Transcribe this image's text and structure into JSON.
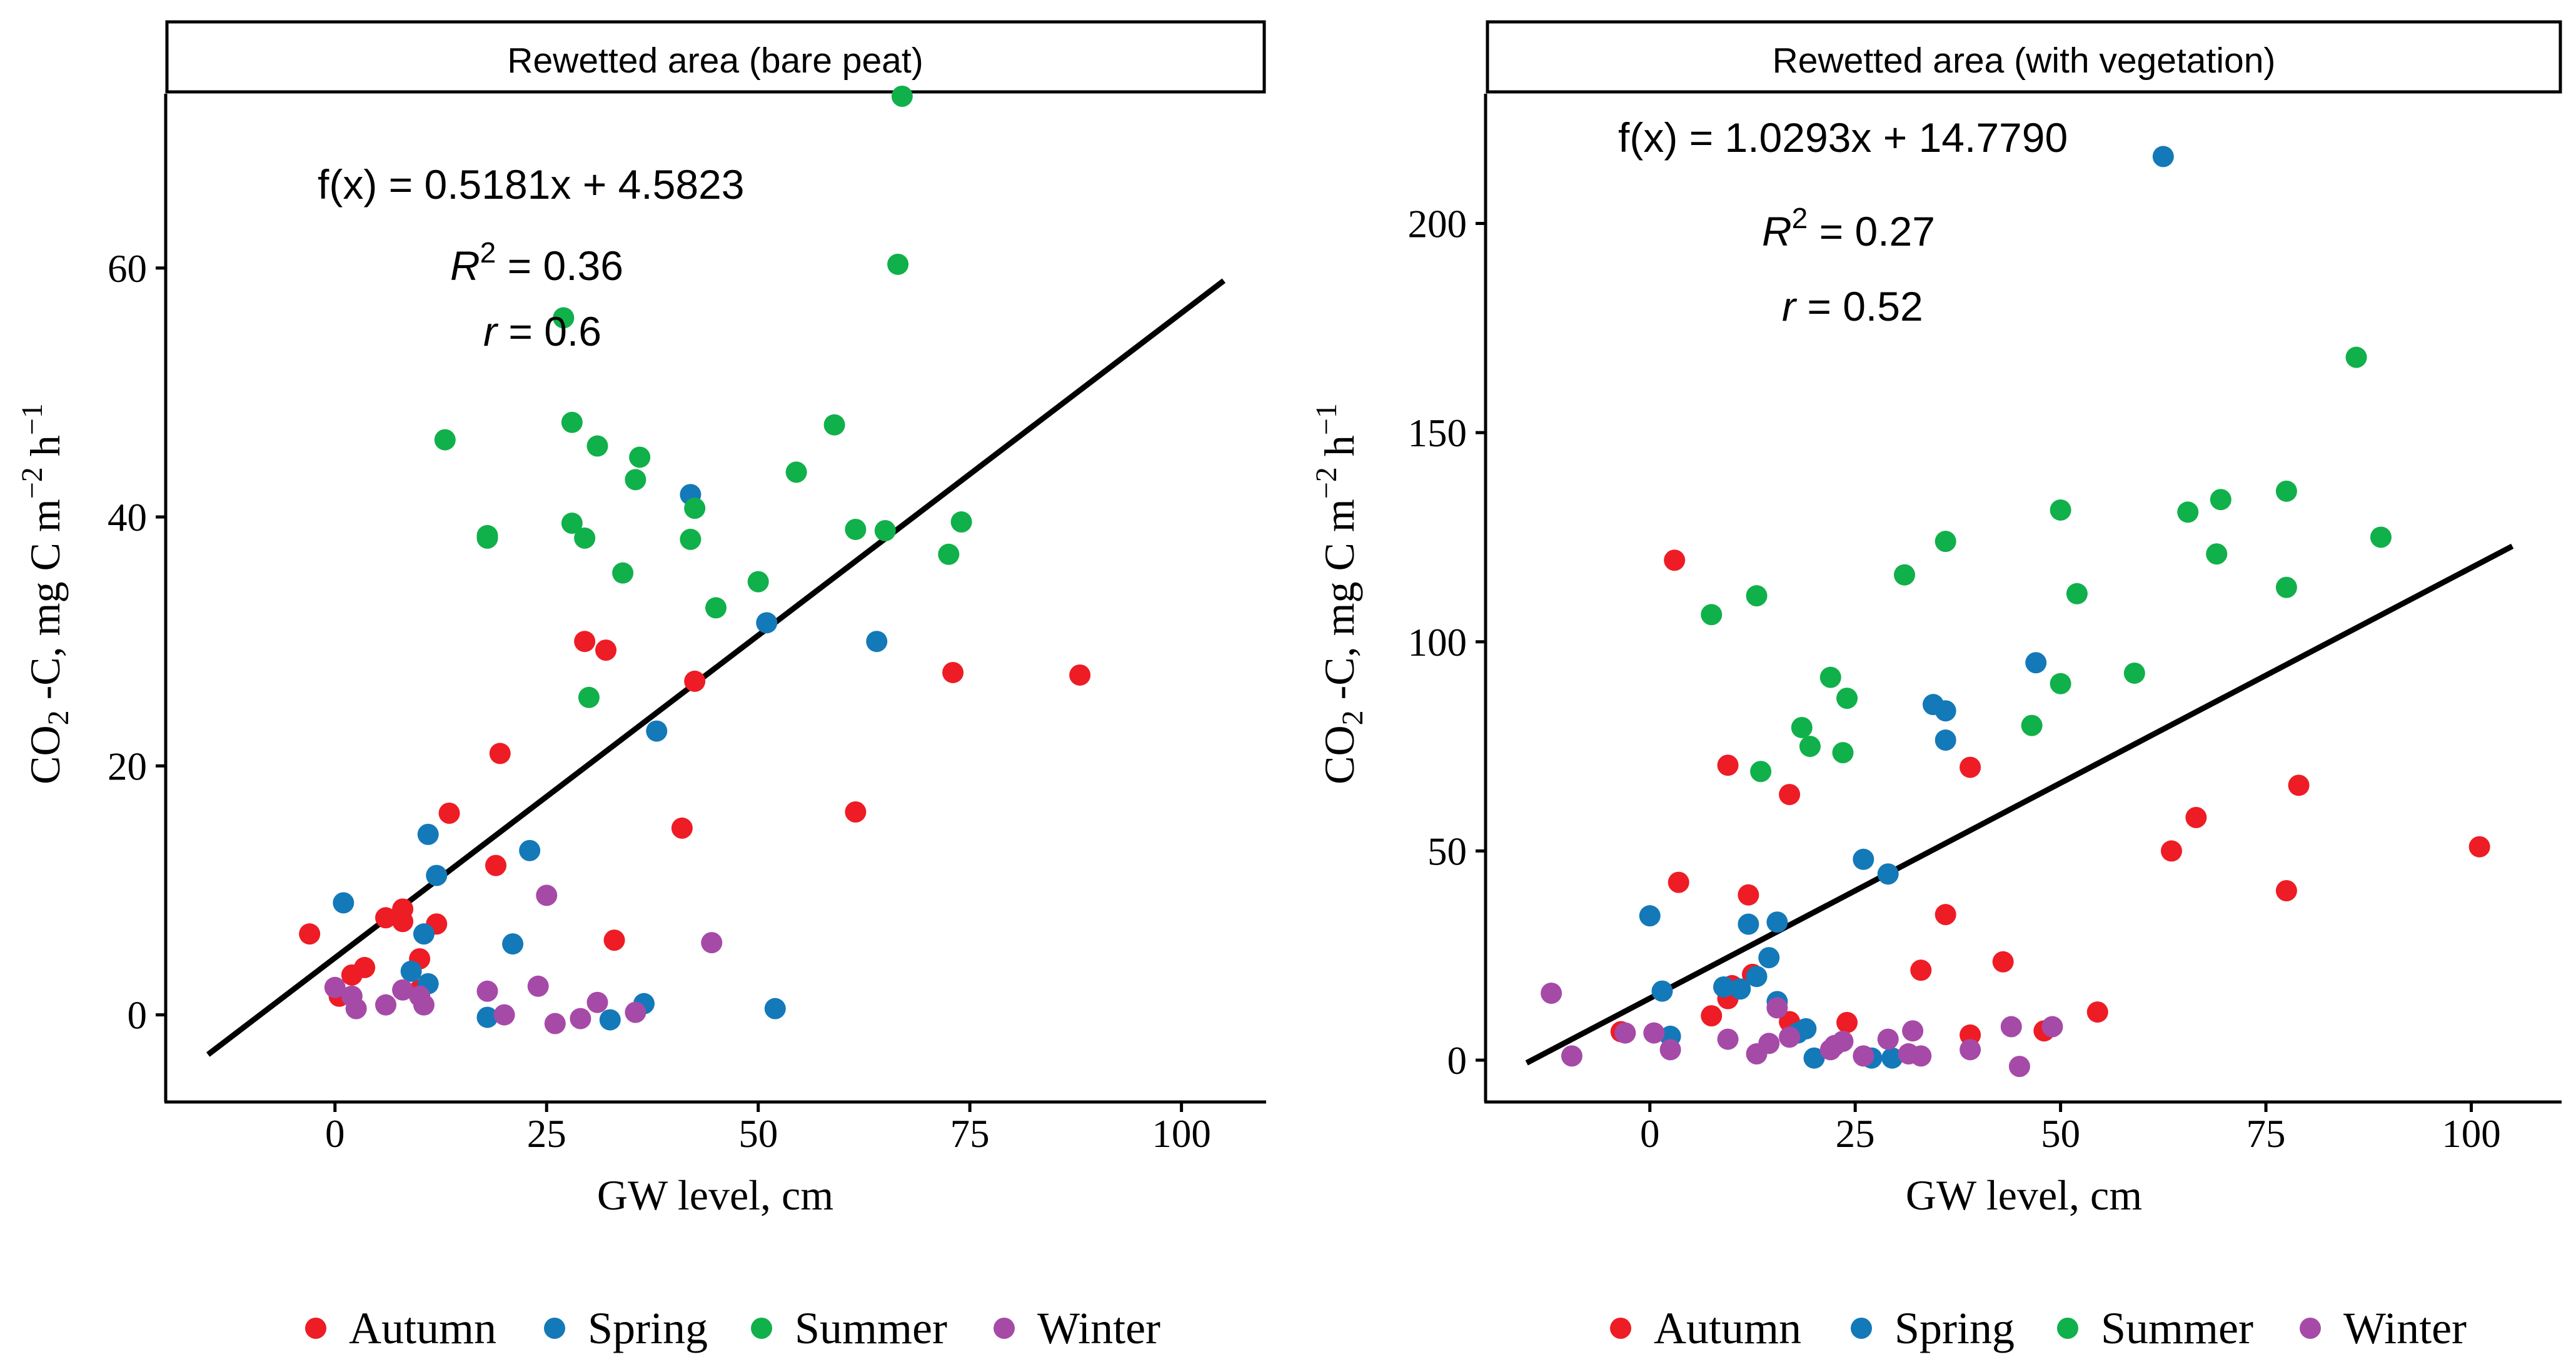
{
  "colors": {
    "Autumn": "#ee1c25",
    "Spring": "#1479b8",
    "Summer": "#10b04a",
    "Winter": "#a64aa8",
    "line": "#000000"
  },
  "legend": {
    "items": [
      "Autumn",
      "Spring",
      "Summer",
      "Winter"
    ]
  },
  "chart_data": [
    {
      "type": "scatter",
      "title": "Rewetted area (bare peat)",
      "xlabel": "GW level, cm",
      "ylabel": "CO2 -C, mg C m−2 h−1",
      "ylabel_parts": {
        "pre": "CO",
        "sub": "2",
        "mid": " -C, mg C m",
        "sup1": "−2",
        "mid2": " h",
        "sup2": "−1"
      },
      "xlim": [
        -20,
        110
      ],
      "ylim": [
        -7,
        74
      ],
      "xticks": [
        0,
        25,
        50,
        75,
        100
      ],
      "yticks": [
        0,
        20,
        40,
        60
      ],
      "xtick_labels": [
        "0",
        "25",
        "50",
        "75",
        "100"
      ],
      "ytick_labels": [
        "0",
        "20",
        "40",
        "60"
      ],
      "equation": "f(x) = 0.5181x + 4.5823",
      "r2_label": "R",
      "r2_sup": "2",
      "r2_value": " = 0.36",
      "r_label": "r",
      "r_value": " = 0.6",
      "fit": {
        "slope": 0.5181,
        "intercept": 4.5823,
        "x_range": [
          -15,
          105
        ]
      },
      "series": [
        {
          "name": "Autumn",
          "points": [
            [
              -3,
              6.5
            ],
            [
              0.5,
              1.5
            ],
            [
              2,
              3.2
            ],
            [
              3.5,
              3.8
            ],
            [
              6,
              7.8
            ],
            [
              8,
              8.5
            ],
            [
              8,
              7.5
            ],
            [
              10,
              4.5
            ],
            [
              10,
              2
            ],
            [
              12,
              7.3
            ],
            [
              13.5,
              16.2
            ],
            [
              19,
              12
            ],
            [
              19.5,
              21
            ],
            [
              29.5,
              30
            ],
            [
              32,
              29.3
            ],
            [
              33,
              6
            ],
            [
              41,
              15
            ],
            [
              42.5,
              26.8
            ],
            [
              61.5,
              16.3
            ],
            [
              73,
              27.5
            ],
            [
              88,
              27.3
            ]
          ]
        },
        {
          "name": "Spring",
          "points": [
            [
              1,
              9
            ],
            [
              9,
              3.5
            ],
            [
              10.5,
              6.5
            ],
            [
              11,
              2.5
            ],
            [
              11,
              14.5
            ],
            [
              12,
              11.2
            ],
            [
              18,
              -0.2
            ],
            [
              21,
              5.7
            ],
            [
              23,
              13.2
            ],
            [
              32.5,
              -0.4
            ],
            [
              36.5,
              0.9
            ],
            [
              38,
              22.8
            ],
            [
              42,
              41.8
            ],
            [
              51,
              31.5
            ],
            [
              52,
              0.5
            ],
            [
              64,
              30
            ]
          ]
        },
        {
          "name": "Summer",
          "points": [
            [
              13,
              46.2
            ],
            [
              18,
              38.3
            ],
            [
              18,
              38.5
            ],
            [
              27,
              56
            ],
            [
              28,
              47.6
            ],
            [
              28,
              39.5
            ],
            [
              29.5,
              38.3
            ],
            [
              30,
              25.5
            ],
            [
              31,
              45.7
            ],
            [
              34,
              35.5
            ],
            [
              35.5,
              43
            ],
            [
              36,
              44.8
            ],
            [
              42,
              38.2
            ],
            [
              42.5,
              40.7
            ],
            [
              45,
              32.7
            ],
            [
              50,
              34.8
            ],
            [
              54.5,
              43.6
            ],
            [
              59,
              47.4
            ],
            [
              61.5,
              39
            ],
            [
              65,
              38.9
            ],
            [
              66.5,
              60.3
            ],
            [
              67,
              73.8
            ],
            [
              72.5,
              37
            ],
            [
              74,
              39.6
            ]
          ]
        },
        {
          "name": "Winter",
          "points": [
            [
              0,
              2.2
            ],
            [
              2,
              1.5
            ],
            [
              2.5,
              0.5
            ],
            [
              6,
              0.8
            ],
            [
              8,
              2
            ],
            [
              10,
              1.5
            ],
            [
              10.5,
              0.8
            ],
            [
              18,
              1.9
            ],
            [
              20,
              0
            ],
            [
              24,
              2.3
            ],
            [
              25,
              9.6
            ],
            [
              26,
              -0.7
            ],
            [
              29,
              -0.3
            ],
            [
              31,
              1
            ],
            [
              35.5,
              0.2
            ],
            [
              44.5,
              5.8
            ]
          ]
        }
      ]
    },
    {
      "type": "scatter",
      "title": "Rewetted area (with vegetation)",
      "xlabel": "GW level, cm",
      "ylabel": "CO2 -C, mg C m−2 h−1",
      "ylabel_parts": {
        "pre": "CO",
        "sub": "2",
        "mid": " -C, mg C m",
        "sup1": "−2",
        "mid2": " h",
        "sup2": "−1"
      },
      "xlim": [
        -20,
        111
      ],
      "ylim": [
        -10,
        231
      ],
      "xticks": [
        0,
        25,
        50,
        75,
        100
      ],
      "yticks": [
        0,
        50,
        100,
        150,
        200
      ],
      "xtick_labels": [
        "0",
        "25",
        "50",
        "75",
        "100"
      ],
      "ytick_labels": [
        "0",
        "50",
        "100",
        "150",
        "200"
      ],
      "equation": "f(x) = 1.0293x + 14.7790",
      "r2_label": "R",
      "r2_sup": "2",
      "r2_value": " = 0.27",
      "r_label": "r",
      "r_value": " = 0.52",
      "fit": {
        "slope": 1.0293,
        "intercept": 14.779,
        "x_range": [
          -15,
          105
        ]
      },
      "series": [
        {
          "name": "Autumn",
          "points": [
            [
              -3.5,
              6.8
            ],
            [
              3,
              119.5
            ],
            [
              3.5,
              42.5
            ],
            [
              7.5,
              10.6
            ],
            [
              9.5,
              70.5
            ],
            [
              9.5,
              14.7
            ],
            [
              10,
              17.8
            ],
            [
              12,
              39.5
            ],
            [
              12.5,
              20.5
            ],
            [
              17,
              63.5
            ],
            [
              17,
              9.2
            ],
            [
              24,
              9
            ],
            [
              33,
              21.5
            ],
            [
              36,
              34.8
            ],
            [
              39,
              70
            ],
            [
              39,
              6
            ],
            [
              43,
              23.5
            ],
            [
              48,
              7
            ],
            [
              54.5,
              11.5
            ],
            [
              63.5,
              50
            ],
            [
              66.5,
              58
            ],
            [
              77.5,
              40.5
            ],
            [
              79,
              65.7
            ],
            [
              101,
              51
            ]
          ]
        },
        {
          "name": "Spring",
          "points": [
            [
              0,
              34.5
            ],
            [
              1.5,
              16.5
            ],
            [
              2.5,
              5.7
            ],
            [
              9,
              17.5
            ],
            [
              11,
              17
            ],
            [
              12,
              32.5
            ],
            [
              13,
              20
            ],
            [
              14.5,
              24.5
            ],
            [
              15.5,
              33
            ],
            [
              15.5,
              14
            ],
            [
              18,
              6.5
            ],
            [
              19,
              7.5
            ],
            [
              20,
              0.5
            ],
            [
              26,
              48
            ],
            [
              27,
              0.5
            ],
            [
              29,
              44.5
            ],
            [
              29.5,
              0.5
            ],
            [
              34.5,
              85
            ],
            [
              36,
              76.5
            ],
            [
              36,
              83.5
            ],
            [
              47,
              95
            ],
            [
              62.5,
              216
            ]
          ]
        },
        {
          "name": "Summer",
          "points": [
            [
              7.5,
              106.5
            ],
            [
              13,
              111
            ],
            [
              13.5,
              69
            ],
            [
              18.5,
              79.5
            ],
            [
              19.5,
              75
            ],
            [
              22,
              91.5
            ],
            [
              23.5,
              73.5
            ],
            [
              24,
              86.5
            ],
            [
              31,
              116
            ],
            [
              36,
              124
            ],
            [
              46.5,
              80
            ],
            [
              50,
              90
            ],
            [
              50,
              131.5
            ],
            [
              52,
              111.5
            ],
            [
              59,
              92.5
            ],
            [
              65.5,
              131
            ],
            [
              69,
              121
            ],
            [
              69.5,
              134
            ],
            [
              77.5,
              136
            ],
            [
              77.5,
              113
            ],
            [
              86,
              168
            ],
            [
              89,
              125
            ]
          ]
        },
        {
          "name": "Winter",
          "points": [
            [
              -12,
              16
            ],
            [
              -9.5,
              1
            ],
            [
              -3,
              6.5
            ],
            [
              0.5,
              6.5
            ],
            [
              2.5,
              2.5
            ],
            [
              9.5,
              5
            ],
            [
              13,
              1.5
            ],
            [
              14.5,
              4
            ],
            [
              15.5,
              12.5
            ],
            [
              17,
              5.5
            ],
            [
              22,
              2.5
            ],
            [
              22.5,
              3.5
            ],
            [
              23.5,
              4.5
            ],
            [
              26,
              1
            ],
            [
              29,
              5
            ],
            [
              31.5,
              1.5
            ],
            [
              32,
              7
            ],
            [
              33,
              1
            ],
            [
              39,
              2.5
            ],
            [
              44,
              8
            ],
            [
              45,
              -1.5
            ],
            [
              49,
              8
            ]
          ]
        }
      ]
    }
  ]
}
